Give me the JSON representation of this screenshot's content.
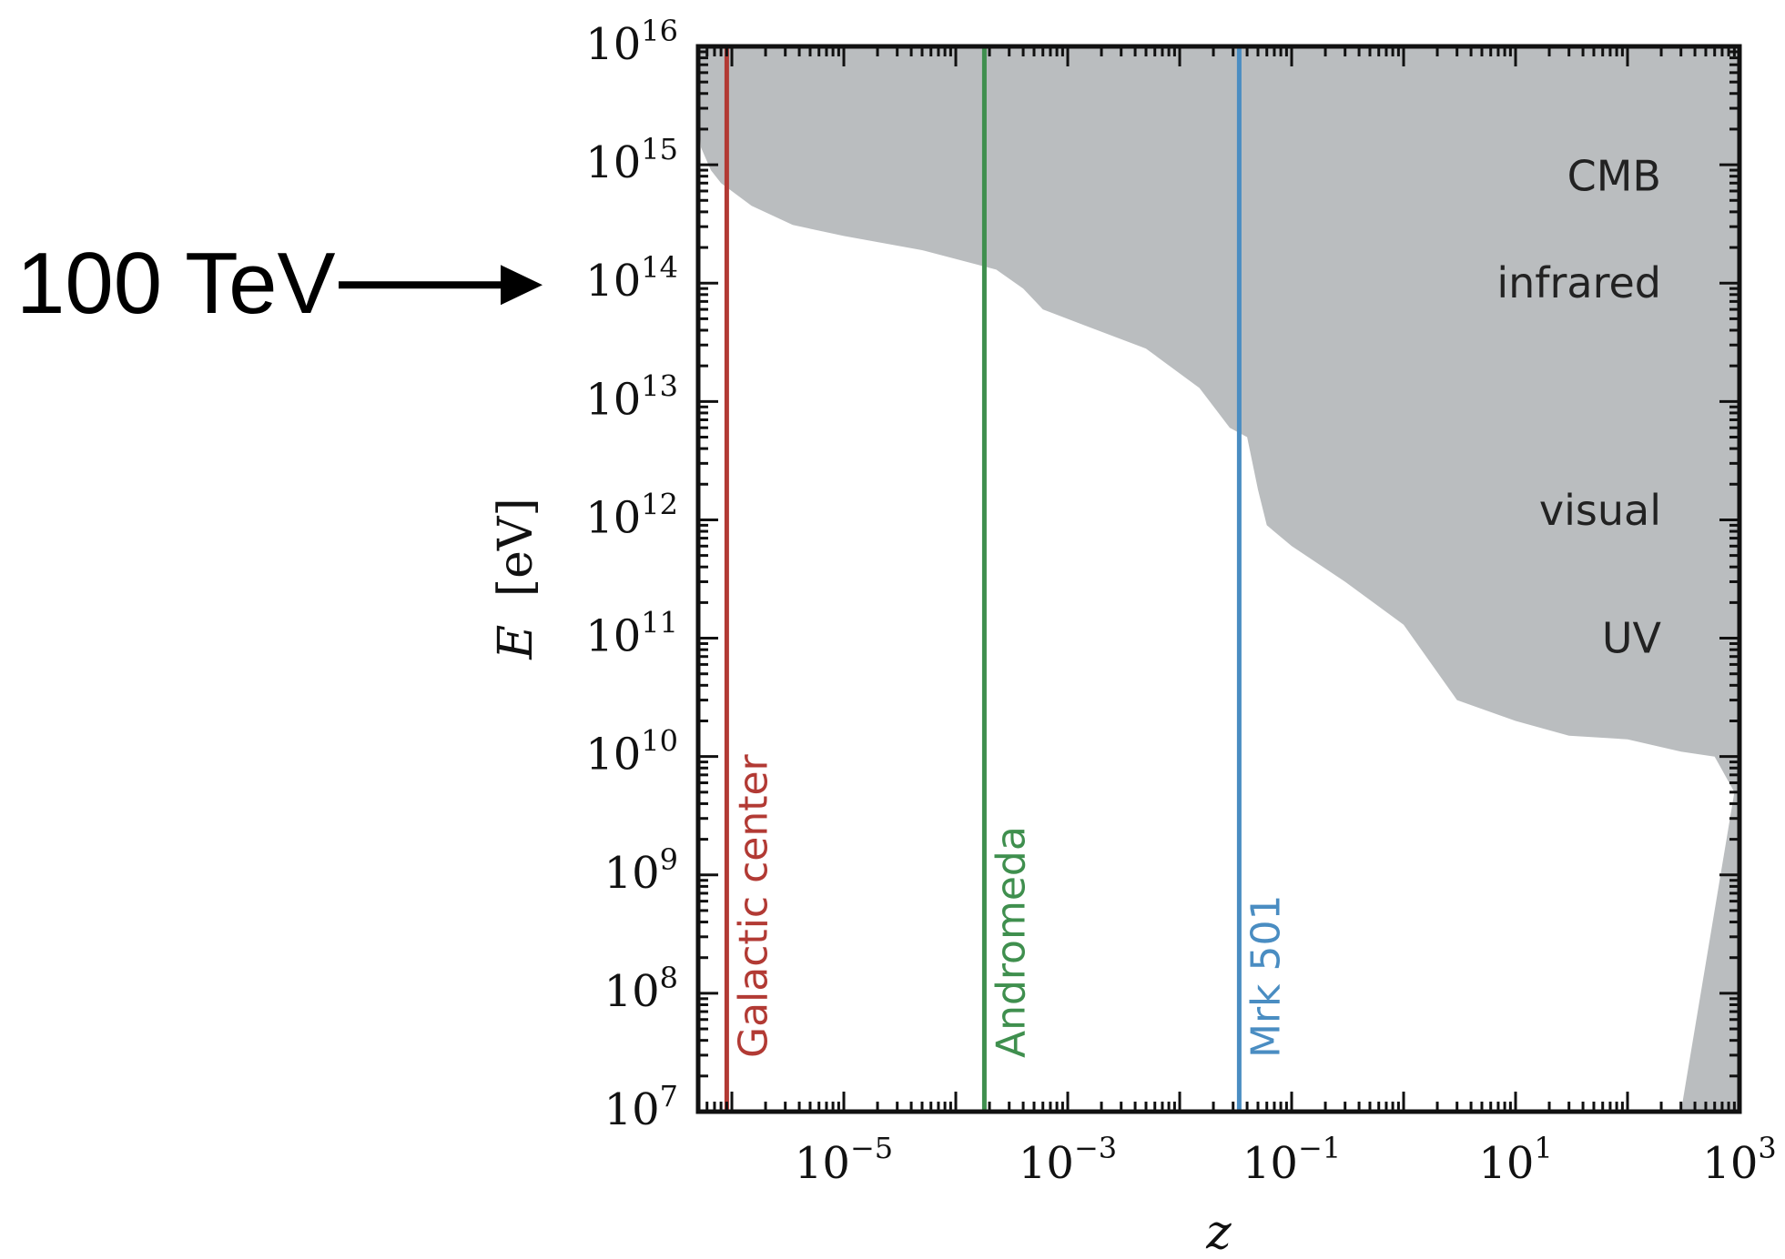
{
  "chart_data": {
    "type": "area",
    "xlabel": "z",
    "ylabel_var": "E",
    "ylabel_unit": "[eV]",
    "xscale": "log",
    "yscale": "log",
    "xlim": [
      5e-07,
      1000
    ],
    "ylim": [
      10000000.0,
      1e+16
    ],
    "grid": false,
    "x_ticks": [
      {
        "base": "10",
        "exp": "−5",
        "value": 1e-05
      },
      {
        "base": "10",
        "exp": "−3",
        "value": 0.001
      },
      {
        "base": "10",
        "exp": "−1",
        "value": 0.1
      },
      {
        "base": "10",
        "exp": "1",
        "value": 10
      },
      {
        "base": "10",
        "exp": "3",
        "value": 1000
      }
    ],
    "y_ticks": [
      {
        "base": "10",
        "exp": "7",
        "value": 10000000.0
      },
      {
        "base": "10",
        "exp": "8",
        "value": 100000000.0
      },
      {
        "base": "10",
        "exp": "9",
        "value": 1000000000.0
      },
      {
        "base": "10",
        "exp": "10",
        "value": 10000000000.0
      },
      {
        "base": "10",
        "exp": "11",
        "value": 100000000000.0
      },
      {
        "base": "10",
        "exp": "12",
        "value": 1000000000000.0
      },
      {
        "base": "10",
        "exp": "13",
        "value": 10000000000000.0
      },
      {
        "base": "10",
        "exp": "14",
        "value": 100000000000000.0
      },
      {
        "base": "10",
        "exp": "15",
        "value": 1000000000000000.0
      },
      {
        "base": "10",
        "exp": "16",
        "value": 1e+16
      }
    ],
    "shaded_region": {
      "color": "#babdbf",
      "boundary": [
        [
          5e-07,
          3200000000000000.0
        ],
        [
          5.3e-07,
          1400000000000000.0
        ],
        [
          6.5e-07,
          900000000000000.0
        ],
        [
          8e-07,
          700000000000000.0
        ],
        [
          1.5e-06,
          450000000000000.0
        ],
        [
          3.5e-06,
          310000000000000.0
        ],
        [
          1e-05,
          250000000000000.0
        ],
        [
          5e-05,
          190000000000000.0
        ],
        [
          0.00023,
          130000000000000.0
        ],
        [
          0.0004,
          90000000000000.0
        ],
        [
          0.0006,
          60000000000000.0
        ],
        [
          0.0015,
          43000000000000.0
        ],
        [
          0.005,
          28000000000000.0
        ],
        [
          0.015,
          13000000000000.0
        ],
        [
          0.028,
          6000000000000.0
        ],
        [
          0.04,
          5000000000000.0
        ],
        [
          0.05,
          1800000000000.0
        ],
        [
          0.06,
          900000000000.0
        ],
        [
          0.1,
          600000000000.0
        ],
        [
          0.3,
          300000000000.0
        ],
        [
          1,
          130000000000.0
        ],
        [
          3,
          30000000000.0
        ],
        [
          10,
          20000000000.0
        ],
        [
          30,
          15000000000.0
        ],
        [
          100,
          14000000000.0
        ],
        [
          300,
          11000000000.0
        ],
        [
          600,
          10000000000.0
        ],
        [
          900,
          5000000000.0
        ],
        [
          300,
          10000000.0
        ]
      ]
    },
    "band_labels": [
      {
        "text": "CMB",
        "energy": 800000000000000.0
      },
      {
        "text": "infrared",
        "energy": 100000000000000.0
      },
      {
        "text": "visual",
        "energy": 1200000000000.0
      },
      {
        "text": "UV",
        "energy": 100000000000.0
      }
    ],
    "vertical_lines": [
      {
        "label": "Galactic center",
        "z": 9e-07,
        "color": "#b23a34"
      },
      {
        "label": "Andromeda",
        "z": 0.00018,
        "color": "#3f8f4e"
      },
      {
        "label": "Mrk 501",
        "z": 0.034,
        "color": "#4a8dc2"
      }
    ]
  },
  "annotation": {
    "text": "100 TeV",
    "target_energy": 100000000000000.0
  }
}
